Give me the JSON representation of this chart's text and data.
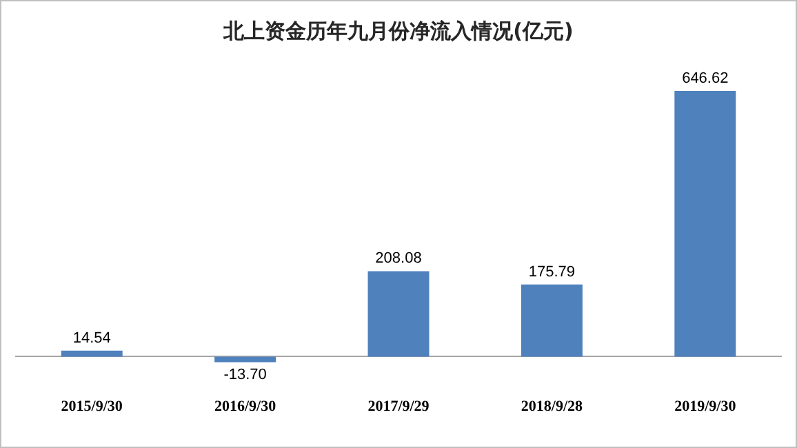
{
  "chart_data": {
    "type": "bar",
    "title": "北上资金历年九月份净流入情况(亿元)",
    "categories": [
      "2015/9/30",
      "2016/9/30",
      "2017/9/29",
      "2018/9/28",
      "2019/9/30"
    ],
    "values": [
      14.54,
      -13.7,
      208.08,
      175.79,
      646.62
    ],
    "value_labels": [
      "14.54",
      "-13.70",
      "208.08",
      "175.79",
      "646.62"
    ],
    "color": "#4f81bd"
  }
}
